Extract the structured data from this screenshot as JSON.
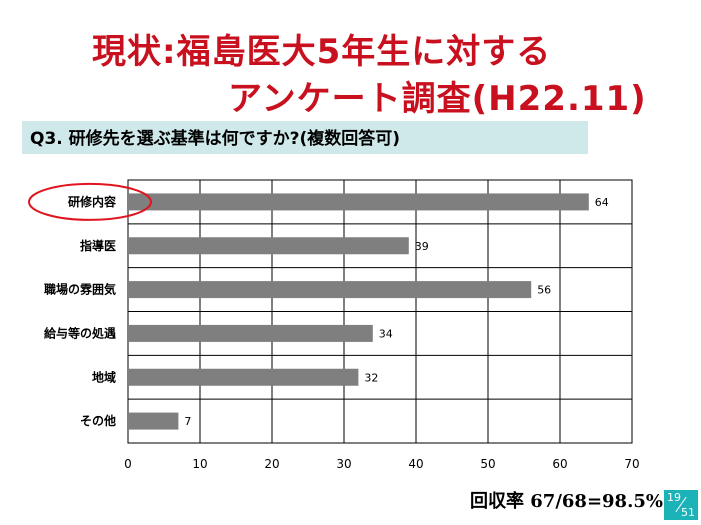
{
  "slide": {
    "title_line1": "現状:福島医大5年生に対する",
    "title_line2": "アンケート調査(H22.11)",
    "question": "Q3. 研修先を選ぶ基準は何ですか?(複数回答可)",
    "response_rate": "回収率 67/68=98.5%",
    "page_current": "19",
    "page_total": "51"
  },
  "colors": {
    "title": "#c8101e",
    "bar": "#7f7f7f",
    "highlight_ellipse": "#e0141e",
    "question_band": "#cfe8ea",
    "page_badge": "#1bb2b8"
  },
  "chart_data": {
    "type": "bar",
    "orientation": "horizontal",
    "categories": [
      "研修内容",
      "指導医",
      "職場の雰囲気",
      "給与等の処遇",
      "地域",
      "その他"
    ],
    "values": [
      64,
      39,
      56,
      34,
      32,
      7
    ],
    "xlim": [
      0,
      70
    ],
    "xticks": [
      0,
      10,
      20,
      30,
      40,
      50,
      60,
      70
    ],
    "grid": true,
    "data_labels": true,
    "highlighted_category": "研修内容"
  }
}
